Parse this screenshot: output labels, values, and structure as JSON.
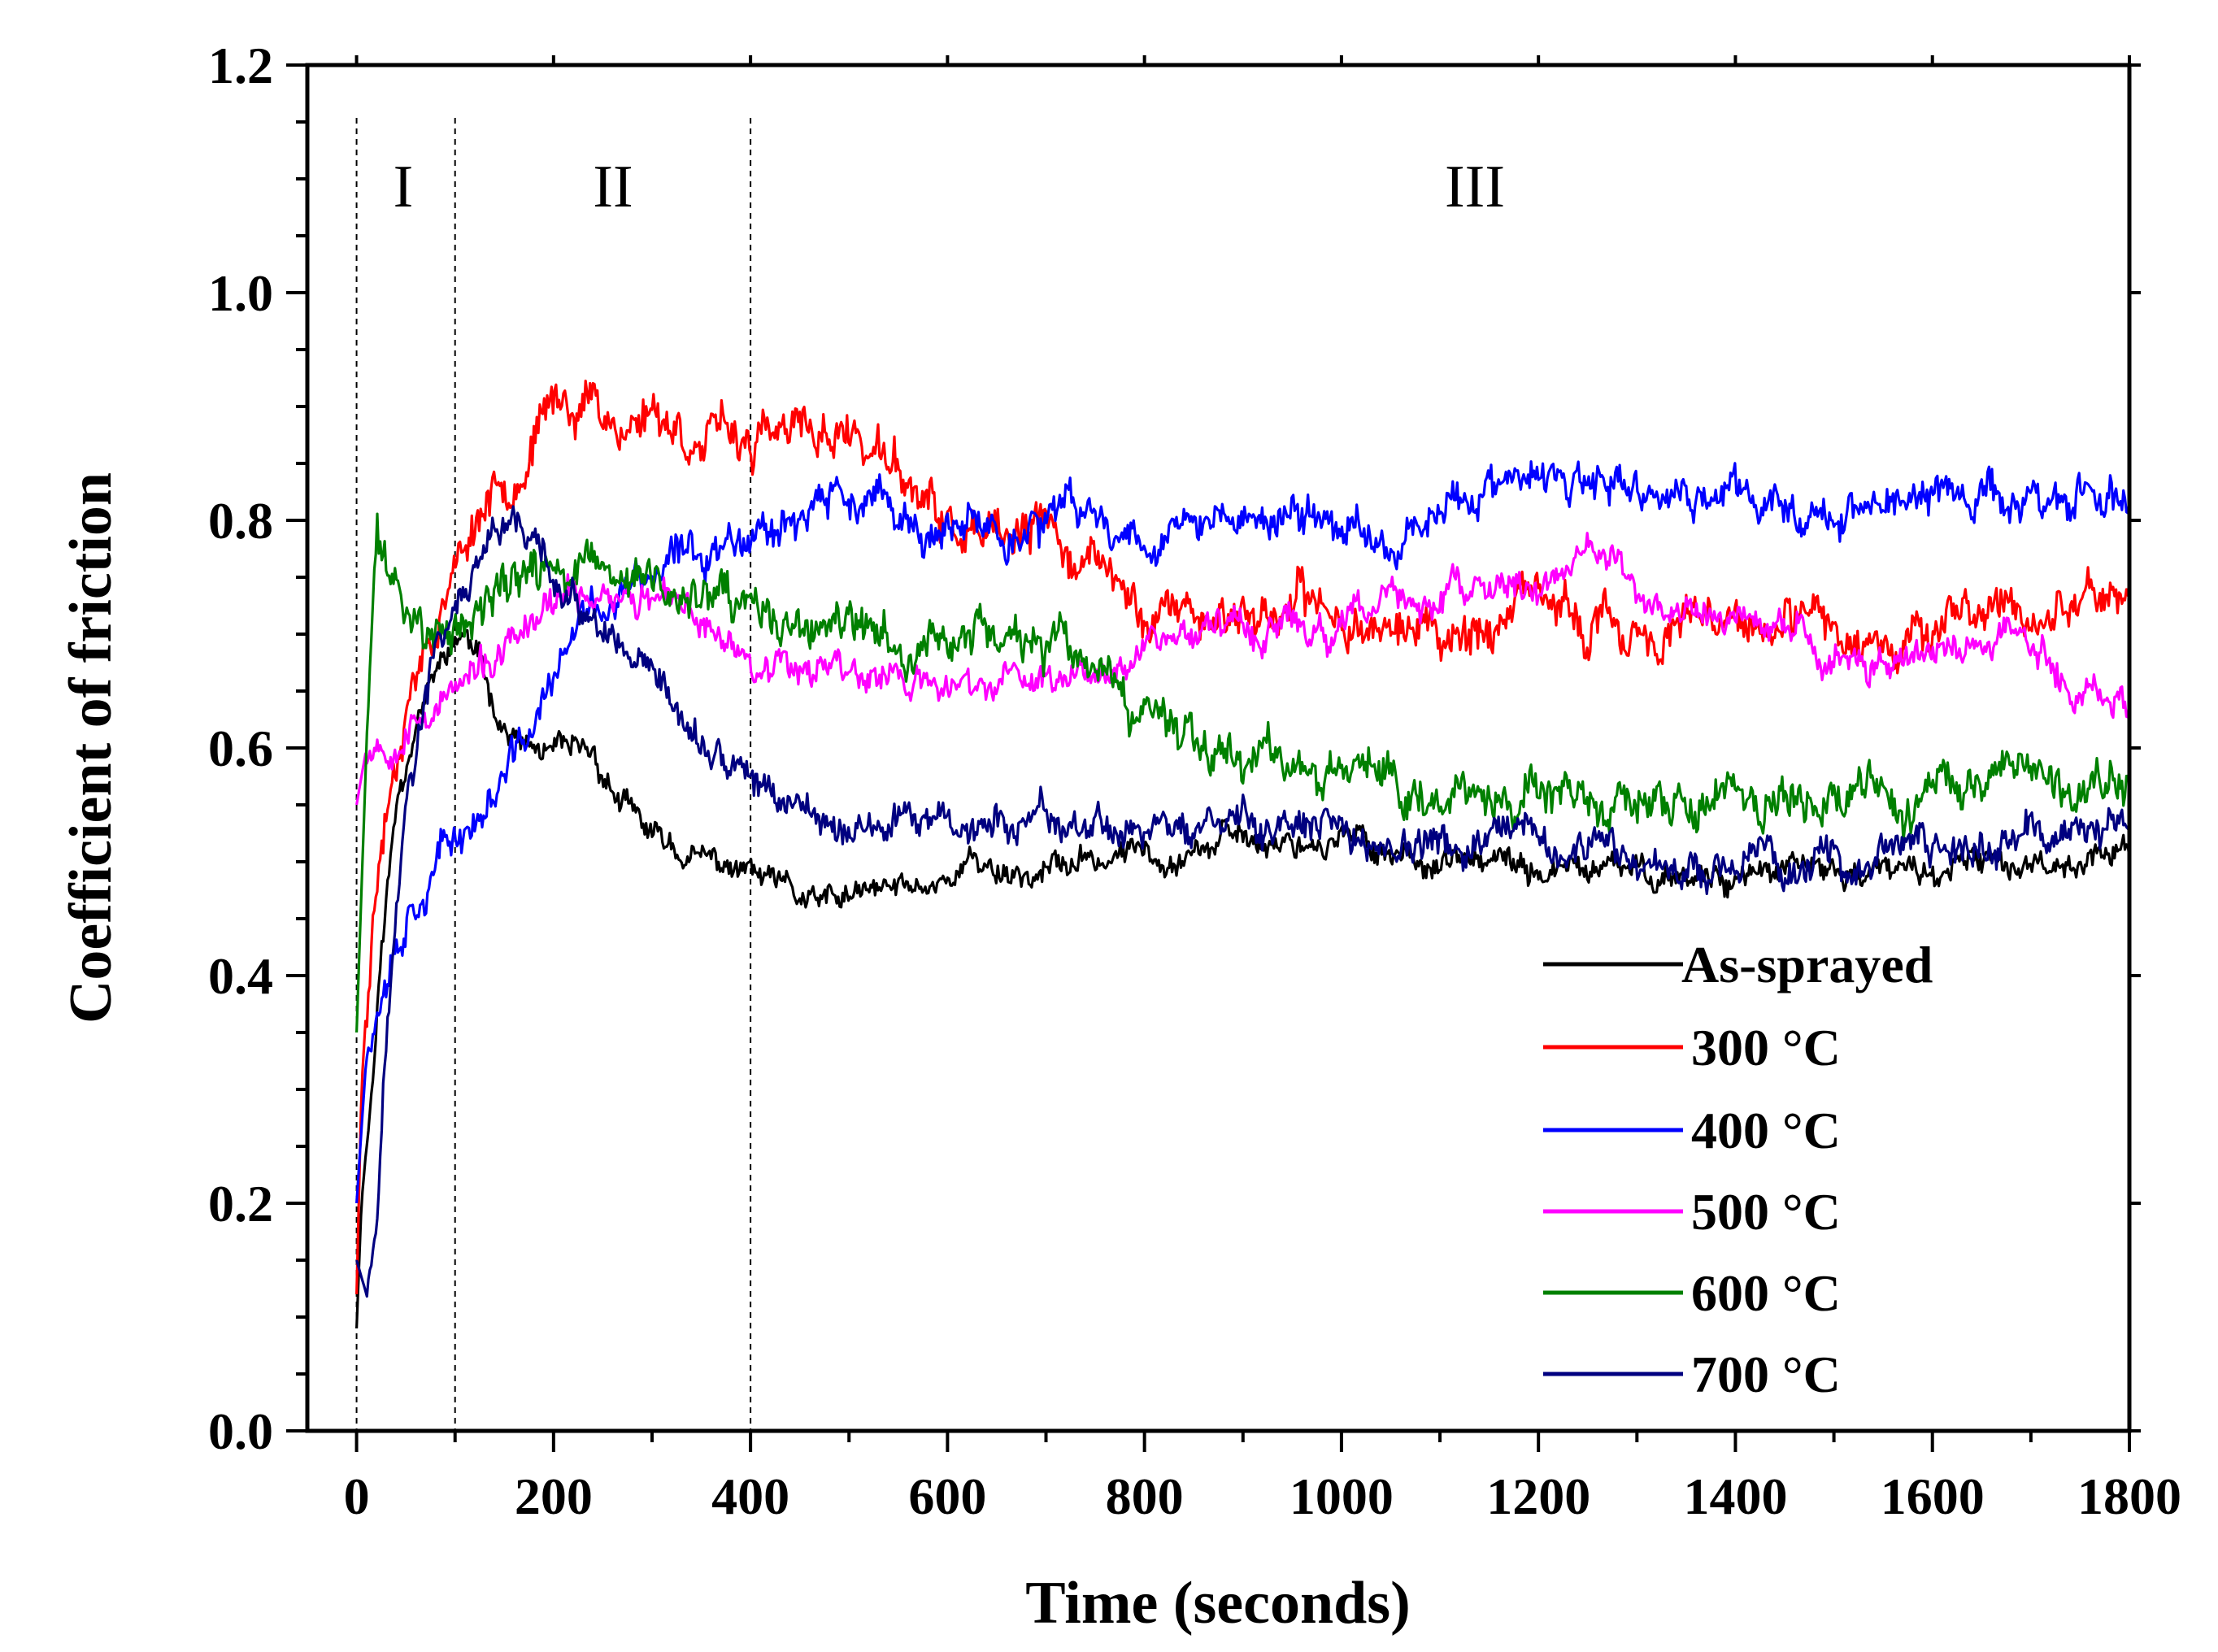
{
  "chart_data": {
    "type": "line",
    "title": "",
    "xlabel": "Time (seconds)",
    "ylabel": "Coefficient of friction",
    "xlim": [
      -50,
      1800
    ],
    "ylim": [
      0.0,
      1.2
    ],
    "xticks": [
      0,
      200,
      400,
      600,
      800,
      1000,
      1200,
      1400,
      1600,
      1800
    ],
    "xtick_labels": [
      "0",
      "200",
      "400",
      "600",
      "800",
      "1000",
      "1200",
      "1400",
      "1600",
      "1800"
    ],
    "yticks": [
      0.0,
      0.2,
      0.4,
      0.6,
      0.8,
      1.0,
      1.2
    ],
    "ytick_labels": [
      "0.0",
      "0.2",
      "0.4",
      "0.6",
      "0.8",
      "1.0",
      "1.2"
    ],
    "grid": false,
    "legend_position": "bottom-right",
    "regions": [
      {
        "label": "I",
        "from": 0,
        "to": 100
      },
      {
        "label": "II",
        "from": 100,
        "to": 400
      },
      {
        "label": "III",
        "from": 400,
        "to": 1800
      }
    ],
    "region_dividers": [
      0,
      100,
      400
    ],
    "series": [
      {
        "name": "As-sprayed",
        "color": "#000000",
        "seed": 11,
        "points": [
          [
            0,
            0.09
          ],
          [
            5,
            0.2
          ],
          [
            15,
            0.3
          ],
          [
            25,
            0.42
          ],
          [
            40,
            0.55
          ],
          [
            60,
            0.63
          ],
          [
            90,
            0.68
          ],
          [
            110,
            0.7
          ],
          [
            130,
            0.66
          ],
          [
            150,
            0.62
          ],
          [
            170,
            0.6
          ],
          [
            200,
            0.59
          ],
          [
            240,
            0.59
          ],
          [
            270,
            0.55
          ],
          [
            300,
            0.52
          ],
          [
            350,
            0.5
          ],
          [
            400,
            0.49
          ],
          [
            440,
            0.47
          ],
          [
            470,
            0.46
          ],
          [
            520,
            0.47
          ],
          [
            580,
            0.48
          ],
          [
            620,
            0.5
          ],
          [
            680,
            0.49
          ],
          [
            750,
            0.5
          ],
          [
            800,
            0.51
          ],
          [
            900,
            0.52
          ],
          [
            1000,
            0.52
          ],
          [
            1100,
            0.5
          ],
          [
            1200,
            0.49
          ],
          [
            1300,
            0.49
          ],
          [
            1400,
            0.49
          ],
          [
            1500,
            0.49
          ],
          [
            1600,
            0.49
          ],
          [
            1700,
            0.5
          ],
          [
            1800,
            0.51
          ]
        ],
        "noise": 0.012
      },
      {
        "name": "300 °C",
        "color": "#ff0000",
        "seed": 23,
        "points": [
          [
            0,
            0.12
          ],
          [
            5,
            0.3
          ],
          [
            15,
            0.45
          ],
          [
            30,
            0.55
          ],
          [
            50,
            0.65
          ],
          [
            80,
            0.72
          ],
          [
            100,
            0.76
          ],
          [
            130,
            0.82
          ],
          [
            170,
            0.86
          ],
          [
            200,
            0.9
          ],
          [
            240,
            0.91
          ],
          [
            270,
            0.88
          ],
          [
            300,
            0.9
          ],
          [
            350,
            0.87
          ],
          [
            400,
            0.87
          ],
          [
            450,
            0.87
          ],
          [
            500,
            0.88
          ],
          [
            550,
            0.84
          ],
          [
            600,
            0.79
          ],
          [
            650,
            0.77
          ],
          [
            700,
            0.79
          ],
          [
            750,
            0.76
          ],
          [
            800,
            0.72
          ],
          [
            900,
            0.72
          ],
          [
            1000,
            0.72
          ],
          [
            1100,
            0.7
          ],
          [
            1200,
            0.72
          ],
          [
            1300,
            0.7
          ],
          [
            1400,
            0.7
          ],
          [
            1500,
            0.7
          ],
          [
            1600,
            0.71
          ],
          [
            1700,
            0.72
          ],
          [
            1800,
            0.74
          ]
        ],
        "noise": 0.02
      },
      {
        "name": "400 °C",
        "color": "#0000ff",
        "seed": 37,
        "points": [
          [
            0,
            0.2
          ],
          [
            10,
            0.33
          ],
          [
            30,
            0.42
          ],
          [
            60,
            0.48
          ],
          [
            100,
            0.52
          ],
          [
            140,
            0.56
          ],
          [
            170,
            0.6
          ],
          [
            200,
            0.66
          ],
          [
            240,
            0.72
          ],
          [
            300,
            0.75
          ],
          [
            350,
            0.77
          ],
          [
            400,
            0.8
          ],
          [
            450,
            0.81
          ],
          [
            500,
            0.82
          ],
          [
            550,
            0.8
          ],
          [
            600,
            0.78
          ],
          [
            650,
            0.79
          ],
          [
            700,
            0.8
          ],
          [
            750,
            0.8
          ],
          [
            800,
            0.79
          ],
          [
            900,
            0.8
          ],
          [
            1000,
            0.8
          ],
          [
            1050,
            0.78
          ],
          [
            1100,
            0.82
          ],
          [
            1200,
            0.83
          ],
          [
            1300,
            0.82
          ],
          [
            1400,
            0.82
          ],
          [
            1500,
            0.81
          ],
          [
            1600,
            0.82
          ],
          [
            1700,
            0.82
          ],
          [
            1800,
            0.82
          ]
        ],
        "noise": 0.018
      },
      {
        "name": "500 °C",
        "color": "#ff00ff",
        "seed": 53,
        "points": [
          [
            0,
            0.55
          ],
          [
            10,
            0.6
          ],
          [
            30,
            0.61
          ],
          [
            60,
            0.63
          ],
          [
            100,
            0.65
          ],
          [
            150,
            0.68
          ],
          [
            200,
            0.72
          ],
          [
            250,
            0.74
          ],
          [
            300,
            0.73
          ],
          [
            350,
            0.71
          ],
          [
            400,
            0.68
          ],
          [
            450,
            0.68
          ],
          [
            500,
            0.67
          ],
          [
            600,
            0.65
          ],
          [
            700,
            0.66
          ],
          [
            750,
            0.67
          ],
          [
            800,
            0.7
          ],
          [
            900,
            0.71
          ],
          [
            1000,
            0.7
          ],
          [
            1050,
            0.73
          ],
          [
            1100,
            0.73
          ],
          [
            1200,
            0.74
          ],
          [
            1250,
            0.78
          ],
          [
            1300,
            0.73
          ],
          [
            1400,
            0.71
          ],
          [
            1500,
            0.68
          ],
          [
            1600,
            0.68
          ],
          [
            1700,
            0.7
          ],
          [
            1750,
            0.65
          ],
          [
            1800,
            0.65
          ]
        ],
        "noise": 0.015
      },
      {
        "name": "600 °C",
        "color": "#008000",
        "seed": 71,
        "points": [
          [
            0,
            0.35
          ],
          [
            10,
            0.6
          ],
          [
            20,
            0.78
          ],
          [
            30,
            0.76
          ],
          [
            50,
            0.72
          ],
          [
            80,
            0.7
          ],
          [
            100,
            0.7
          ],
          [
            150,
            0.74
          ],
          [
            200,
            0.76
          ],
          [
            250,
            0.75
          ],
          [
            300,
            0.74
          ],
          [
            350,
            0.73
          ],
          [
            400,
            0.71
          ],
          [
            450,
            0.7
          ],
          [
            500,
            0.7
          ],
          [
            550,
            0.68
          ],
          [
            600,
            0.7
          ],
          [
            650,
            0.7
          ],
          [
            700,
            0.69
          ],
          [
            750,
            0.66
          ],
          [
            780,
            0.62
          ],
          [
            850,
            0.62
          ],
          [
            900,
            0.6
          ],
          [
            1000,
            0.58
          ],
          [
            1100,
            0.57
          ],
          [
            1200,
            0.55
          ],
          [
            1300,
            0.54
          ],
          [
            1400,
            0.55
          ],
          [
            1500,
            0.56
          ],
          [
            1600,
            0.56
          ],
          [
            1700,
            0.57
          ],
          [
            1800,
            0.56
          ]
        ],
        "noise": 0.02
      },
      {
        "name": "700 °C",
        "color": "#000080",
        "seed": 97,
        "points": [
          [
            0,
            0.15
          ],
          [
            10,
            0.12
          ],
          [
            20,
            0.2
          ],
          [
            30,
            0.35
          ],
          [
            50,
            0.55
          ],
          [
            80,
            0.68
          ],
          [
            100,
            0.72
          ],
          [
            130,
            0.76
          ],
          [
            160,
            0.79
          ],
          [
            180,
            0.79
          ],
          [
            200,
            0.74
          ],
          [
            250,
            0.69
          ],
          [
            300,
            0.64
          ],
          [
            350,
            0.6
          ],
          [
            400,
            0.57
          ],
          [
            450,
            0.55
          ],
          [
            500,
            0.53
          ],
          [
            600,
            0.53
          ],
          [
            700,
            0.53
          ],
          [
            800,
            0.53
          ],
          [
            900,
            0.53
          ],
          [
            1000,
            0.52
          ],
          [
            1100,
            0.51
          ],
          [
            1200,
            0.51
          ],
          [
            1300,
            0.5
          ],
          [
            1400,
            0.5
          ],
          [
            1500,
            0.5
          ],
          [
            1600,
            0.51
          ],
          [
            1700,
            0.52
          ],
          [
            1800,
            0.53
          ]
        ],
        "noise": 0.016
      }
    ]
  }
}
